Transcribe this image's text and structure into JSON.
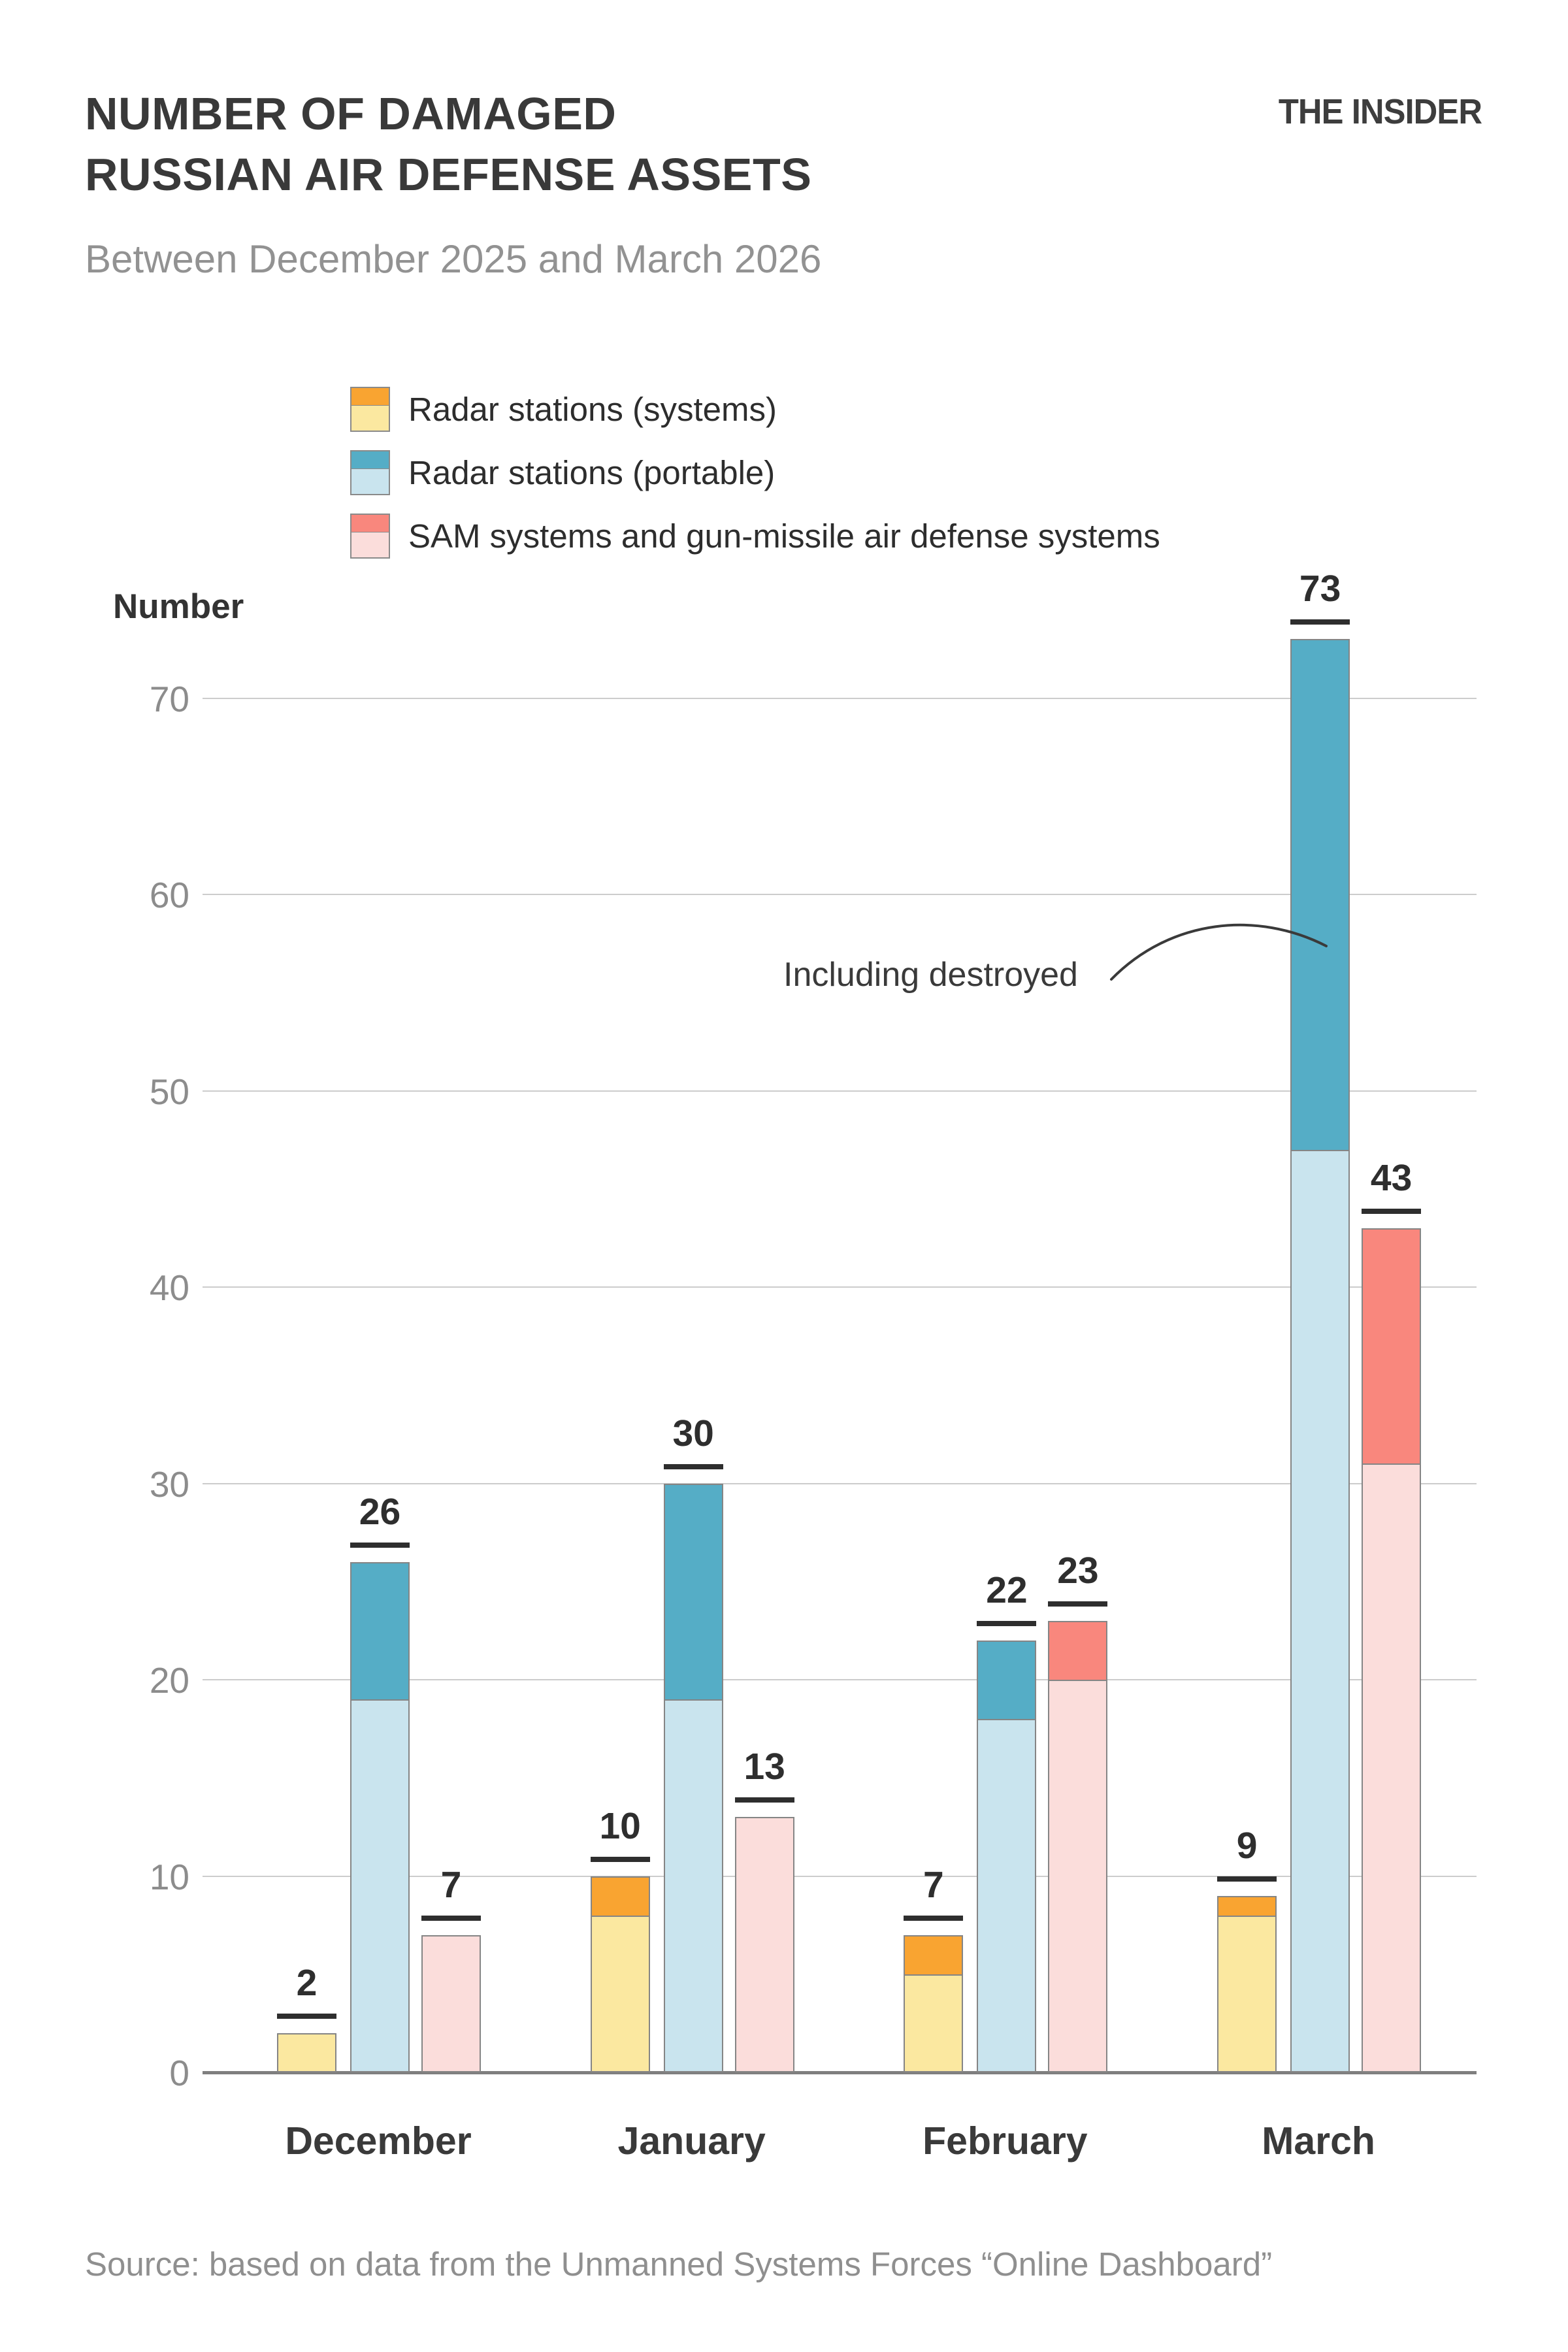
{
  "header": {
    "title_line1": "NUMBER OF DAMAGED",
    "title_line2": "RUSSIAN AIR DEFENSE ASSETS",
    "subtitle": "Between December 2025 and March 2026",
    "logo": "THE INSIDER"
  },
  "legend": {
    "items": [
      {
        "label": "Radar stations (systems)",
        "color_light": "#FBE8A0",
        "color_dark": "#F9A431"
      },
      {
        "label": "Radar stations (portable)",
        "color_light": "#C9E4EE",
        "color_dark": "#55ADC6"
      },
      {
        "label": "SAM systems and gun-missile air defense systems",
        "color_light": "#FBDDDB",
        "color_dark": "#F9877D"
      }
    ]
  },
  "axis": {
    "ylabel": "Number",
    "yticks": [
      0,
      10,
      20,
      30,
      40,
      50,
      60,
      70
    ]
  },
  "annotation": {
    "text": "Including destroyed"
  },
  "source": "Source: based on data from the Unmanned Systems Forces “Online Dashboard”",
  "chart_data": {
    "type": "bar",
    "title": "Number of damaged Russian air defense assets",
    "subtitle": "Between December 2025 and March 2026",
    "categories": [
      "December",
      "January",
      "February",
      "March"
    ],
    "series": [
      {
        "name": "Radar stations (systems)",
        "totals": [
          2,
          10,
          7,
          9
        ],
        "destroyed": [
          0,
          2,
          2,
          1
        ],
        "damaged_only": [
          2,
          8,
          5,
          8
        ]
      },
      {
        "name": "Radar stations (portable)",
        "totals": [
          26,
          30,
          22,
          73
        ],
        "destroyed": [
          7,
          11,
          4,
          26
        ],
        "damaged_only": [
          19,
          19,
          18,
          47
        ]
      },
      {
        "name": "SAM systems and gun-missile air defense systems",
        "totals": [
          7,
          13,
          23,
          43
        ],
        "destroyed": [
          0,
          0,
          3,
          12
        ],
        "damaged_only": [
          7,
          13,
          20,
          31
        ]
      }
    ],
    "bar_labels": {
      "December": [
        2,
        26,
        7
      ],
      "January": [
        10,
        30,
        13
      ],
      "February": [
        7,
        22,
        23
      ],
      "March": [
        9,
        73,
        43
      ]
    },
    "annotation": "Including destroyed (dark upper segment of each bar)",
    "xlabel": "",
    "ylabel": "Number",
    "ylim": [
      0,
      73
    ],
    "grid": true,
    "legend_position": "top-left-above-plot"
  }
}
